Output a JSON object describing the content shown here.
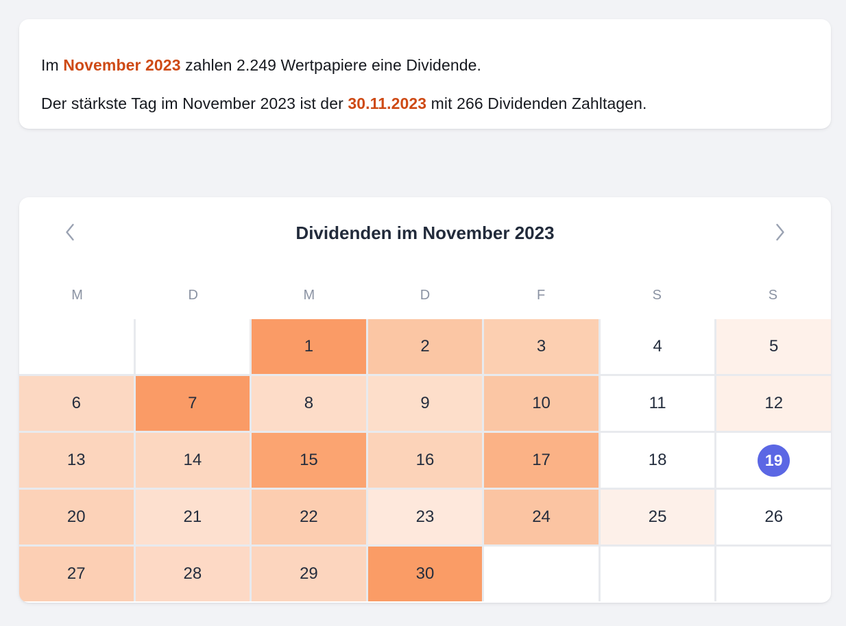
{
  "page": {
    "background_color": "#f2f3f6"
  },
  "summary_card": {
    "line1": {
      "prefix": "Im ",
      "highlight": "November 2023",
      "suffix": " zahlen 2.249 Wertpapiere eine Dividende."
    },
    "line2": {
      "prefix": "Der stärkste Tag im November 2023 ist der ",
      "highlight": "30.11.2023",
      "suffix": " mit 266 Dividenden Zahltagen."
    },
    "highlight_color": "#ce4a15"
  },
  "calendar": {
    "title": "Dividenden im November 2023",
    "prev_icon": "chevron-left-icon",
    "next_icon": "chevron-right-icon",
    "weekdays": [
      "M",
      "D",
      "M",
      "D",
      "F",
      "S",
      "S"
    ],
    "selected_day": 19,
    "selected_color": "#5b67e4",
    "grid_line_color": "#e8eaee",
    "heat_scale": {
      "max_color": "#fa9b66",
      "min_color": "#ffffff",
      "max_value_label": "266 Dividenden Zahltagen am 30.11.2023"
    },
    "cells": [
      {
        "day": null,
        "color": "#ffffff"
      },
      {
        "day": null,
        "color": "#ffffff"
      },
      {
        "day": 1,
        "color": "#fa9b66"
      },
      {
        "day": 2,
        "color": "#fbc6a4"
      },
      {
        "day": 3,
        "color": "#fccfb1"
      },
      {
        "day": 4,
        "color": "#ffffff"
      },
      {
        "day": 5,
        "color": "#fef1ea"
      },
      {
        "day": 6,
        "color": "#fcd8c2"
      },
      {
        "day": 7,
        "color": "#fa9b66"
      },
      {
        "day": 8,
        "color": "#fddcc8"
      },
      {
        "day": 9,
        "color": "#fddeca"
      },
      {
        "day": 10,
        "color": "#fbc6a4"
      },
      {
        "day": 11,
        "color": "#ffffff"
      },
      {
        "day": 12,
        "color": "#fef0e8"
      },
      {
        "day": 13,
        "color": "#fcd5bd"
      },
      {
        "day": 14,
        "color": "#fcd7c0"
      },
      {
        "day": 15,
        "color": "#fba471"
      },
      {
        "day": 16,
        "color": "#fcd3b9"
      },
      {
        "day": 17,
        "color": "#fbb286"
      },
      {
        "day": 18,
        "color": "#ffffff"
      },
      {
        "day": 19,
        "color": "#ffffff",
        "selected": true
      },
      {
        "day": 20,
        "color": "#fcd2b8"
      },
      {
        "day": 21,
        "color": "#fde0cf"
      },
      {
        "day": 22,
        "color": "#fccdb0"
      },
      {
        "day": 23,
        "color": "#fee8dc"
      },
      {
        "day": 24,
        "color": "#fbc4a2"
      },
      {
        "day": 25,
        "color": "#fdf0e9"
      },
      {
        "day": 26,
        "color": "#ffffff"
      },
      {
        "day": 27,
        "color": "#fccfb4"
      },
      {
        "day": 28,
        "color": "#fdd9c5"
      },
      {
        "day": 29,
        "color": "#fcd5be"
      },
      {
        "day": 30,
        "color": "#fa9c66"
      },
      {
        "day": null,
        "color": "#ffffff"
      },
      {
        "day": null,
        "color": "#ffffff"
      },
      {
        "day": null,
        "color": "#ffffff"
      }
    ]
  }
}
